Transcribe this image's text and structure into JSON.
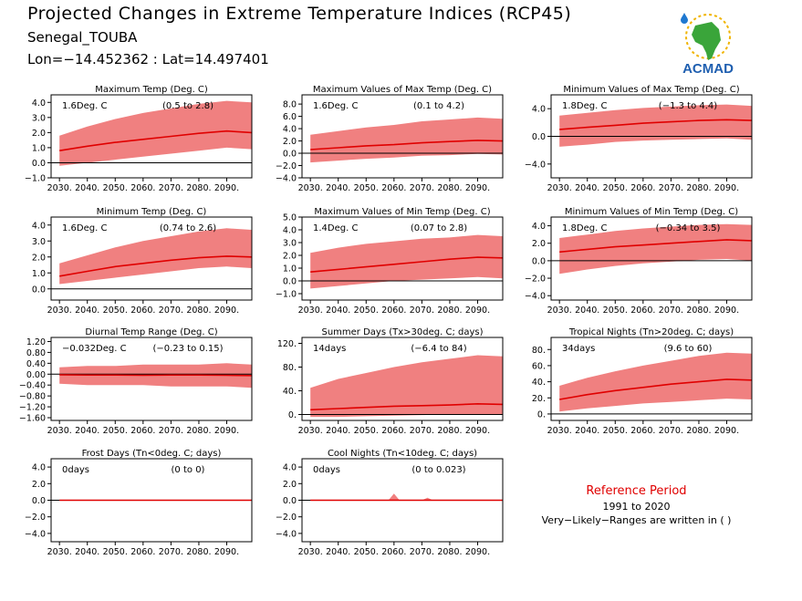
{
  "header": {
    "title": "Projected Changes in Extreme Temperature Indices (RCP45)",
    "location": "Senegal_TOUBA",
    "coords": "Lon=−14.452362 : Lat=14.497401"
  },
  "logo": {
    "text": "ACMAD",
    "icon": "africa-map-logo",
    "colors": {
      "africa": "#3aa53a",
      "sun": "#f0b400",
      "drop": "#1f78d0",
      "text": "#1f5fb0"
    }
  },
  "reference": {
    "title": "Reference Period",
    "years": "1991 to 2020",
    "note": "Very−Likely−Ranges are written in ( )"
  },
  "colors": {
    "band": "#f08080",
    "line": "#e00000",
    "zero_line": "#000000"
  },
  "chart_data": [
    {
      "type": "area",
      "title": "Maximum Temp (Deg. C)",
      "value_text": "1.6Deg. C",
      "range_text": "(0.5 to 2.8)",
      "ylim": [
        -1.0,
        4.5
      ],
      "yticks": [
        -1.0,
        0.0,
        1.0,
        2.0,
        3.0,
        4.0
      ],
      "ytick_labels": [
        "−1.0",
        "0.0",
        "1.0",
        "2.0",
        "3.0",
        "4.0"
      ],
      "xticks": [
        2030,
        2040,
        2050,
        2060,
        2070,
        2080,
        2090
      ],
      "xtick_labels": [
        "2030.",
        "2040.",
        "2050.",
        "2060.",
        "2070.",
        "2080.",
        "2090."
      ],
      "x": [
        2030,
        2040,
        2050,
        2060,
        2070,
        2080,
        2090,
        2099
      ],
      "series": [
        {
          "values": [
            0.8,
            1.1,
            1.35,
            1.55,
            1.75,
            1.95,
            2.1,
            2.0
          ]
        },
        {
          "role": "upper",
          "values": [
            1.8,
            2.4,
            2.9,
            3.3,
            3.6,
            3.9,
            4.1,
            4.0
          ]
        },
        {
          "role": "lower",
          "values": [
            -0.2,
            0.0,
            0.2,
            0.4,
            0.6,
            0.8,
            1.0,
            0.9
          ]
        }
      ]
    },
    {
      "type": "area",
      "title": "Maximum Values of Max Temp (Deg. C)",
      "value_text": "1.6Deg. C",
      "range_text": "(0.1 to 4.2)",
      "ylim": [
        -4.0,
        9.5
      ],
      "yticks": [
        -4.0,
        -2.0,
        0.0,
        2.0,
        4.0,
        6.0,
        8.0
      ],
      "ytick_labels": [
        "−4.0",
        "−2.0",
        "0.0",
        "2.0",
        "4.0",
        "6.0",
        "8.0"
      ],
      "xticks": [
        2030,
        2040,
        2050,
        2060,
        2070,
        2080,
        2090
      ],
      "xtick_labels": [
        "2030.",
        "2040.",
        "2050.",
        "2060.",
        "2070.",
        "2080.",
        "2090."
      ],
      "x": [
        2030,
        2040,
        2050,
        2060,
        2070,
        2080,
        2090,
        2099
      ],
      "series": [
        {
          "values": [
            0.6,
            0.9,
            1.2,
            1.4,
            1.7,
            1.9,
            2.1,
            2.0
          ]
        },
        {
          "role": "upper",
          "values": [
            3.0,
            3.6,
            4.2,
            4.6,
            5.2,
            5.5,
            5.8,
            5.6
          ]
        },
        {
          "role": "lower",
          "values": [
            -1.5,
            -1.2,
            -0.9,
            -0.7,
            -0.4,
            -0.3,
            -0.1,
            -0.2
          ]
        }
      ]
    },
    {
      "type": "area",
      "title": "Minimum Values of Max Temp (Deg. C)",
      "value_text": "1.8Deg. C",
      "range_text": "(−1.3 to 4.4)",
      "ylim": [
        -6.0,
        6.0
      ],
      "yticks": [
        -4.0,
        0.0,
        4.0
      ],
      "ytick_labels": [
        "−4.0",
        "0.0",
        "4.0"
      ],
      "xticks": [
        2030,
        2040,
        2050,
        2060,
        2070,
        2080,
        2090
      ],
      "xtick_labels": [
        "2030.",
        "2040.",
        "2050.",
        "2060.",
        "2070.",
        "2080.",
        "2090."
      ],
      "x": [
        2030,
        2040,
        2050,
        2060,
        2070,
        2080,
        2090,
        2099
      ],
      "series": [
        {
          "values": [
            1.0,
            1.3,
            1.6,
            1.9,
            2.1,
            2.3,
            2.4,
            2.3
          ]
        },
        {
          "role": "upper",
          "values": [
            3.0,
            3.4,
            3.8,
            4.1,
            4.3,
            4.5,
            4.6,
            4.4
          ]
        },
        {
          "role": "lower",
          "values": [
            -1.5,
            -1.2,
            -0.8,
            -0.6,
            -0.5,
            -0.4,
            -0.3,
            -0.5
          ]
        }
      ]
    },
    {
      "type": "area",
      "title": "Minimum Temp (Deg. C)",
      "value_text": "1.6Deg. C",
      "range_text": "(0.74 to 2.6)",
      "ylim": [
        -0.7,
        4.5
      ],
      "yticks": [
        0.0,
        1.0,
        2.0,
        3.0,
        4.0
      ],
      "ytick_labels": [
        "0.0",
        "1.0",
        "2.0",
        "3.0",
        "4.0"
      ],
      "xticks": [
        2030,
        2040,
        2050,
        2060,
        2070,
        2080,
        2090
      ],
      "xtick_labels": [
        "2030.",
        "2040.",
        "2050.",
        "2060.",
        "2070.",
        "2080.",
        "2090."
      ],
      "x": [
        2030,
        2040,
        2050,
        2060,
        2070,
        2080,
        2090,
        2099
      ],
      "series": [
        {
          "values": [
            0.8,
            1.1,
            1.4,
            1.6,
            1.8,
            1.95,
            2.05,
            2.0
          ]
        },
        {
          "role": "upper",
          "values": [
            1.6,
            2.1,
            2.6,
            3.0,
            3.3,
            3.6,
            3.8,
            3.7
          ]
        },
        {
          "role": "lower",
          "values": [
            0.3,
            0.5,
            0.7,
            0.9,
            1.1,
            1.3,
            1.4,
            1.3
          ]
        }
      ]
    },
    {
      "type": "area",
      "title": "Maximum Values of Min Temp (Deg. C)",
      "value_text": "1.4Deg. C",
      "range_text": "(0.07 to 2.8)",
      "ylim": [
        -1.5,
        5.0
      ],
      "yticks": [
        -1.0,
        0.0,
        1.0,
        2.0,
        3.0,
        4.0,
        5.0
      ],
      "ytick_labels": [
        "−1.0",
        "0.0",
        "1.0",
        "2.0",
        "3.0",
        "4.0",
        "5.0"
      ],
      "xticks": [
        2030,
        2040,
        2050,
        2060,
        2070,
        2080,
        2090
      ],
      "xtick_labels": [
        "2030.",
        "2040.",
        "2050.",
        "2060.",
        "2070.",
        "2080.",
        "2090."
      ],
      "x": [
        2030,
        2040,
        2050,
        2060,
        2070,
        2080,
        2090,
        2099
      ],
      "series": [
        {
          "values": [
            0.7,
            0.9,
            1.1,
            1.3,
            1.5,
            1.7,
            1.85,
            1.8
          ]
        },
        {
          "role": "upper",
          "values": [
            2.2,
            2.6,
            2.9,
            3.1,
            3.3,
            3.4,
            3.6,
            3.5
          ]
        },
        {
          "role": "lower",
          "values": [
            -0.6,
            -0.4,
            -0.2,
            0.0,
            0.1,
            0.2,
            0.3,
            0.2
          ]
        }
      ]
    },
    {
      "type": "area",
      "title": "Minimum Values of Min Temp (Deg. C)",
      "value_text": "1.8Deg. C",
      "range_text": "(−0.34 to 3.5)",
      "ylim": [
        -4.5,
        5.0
      ],
      "yticks": [
        -4.0,
        -2.0,
        0.0,
        2.0,
        4.0
      ],
      "ytick_labels": [
        "−4.0",
        "−2.0",
        "0.0",
        "2.0",
        "4.0"
      ],
      "xticks": [
        2030,
        2040,
        2050,
        2060,
        2070,
        2080,
        2090
      ],
      "xtick_labels": [
        "2030.",
        "2040.",
        "2050.",
        "2060.",
        "2070.",
        "2080.",
        "2090."
      ],
      "x": [
        2030,
        2040,
        2050,
        2060,
        2070,
        2080,
        2090,
        2099
      ],
      "series": [
        {
          "values": [
            1.0,
            1.3,
            1.6,
            1.8,
            2.0,
            2.2,
            2.4,
            2.3
          ]
        },
        {
          "role": "upper",
          "values": [
            2.6,
            3.0,
            3.4,
            3.7,
            3.9,
            4.1,
            4.2,
            4.1
          ]
        },
        {
          "role": "lower",
          "values": [
            -1.5,
            -1.0,
            -0.6,
            -0.3,
            -0.1,
            0.1,
            0.2,
            0.0
          ]
        }
      ]
    },
    {
      "type": "area",
      "title": "Diurnal Temp Range (Deg. C)",
      "value_text": "−0.032Deg. C",
      "range_text": "(−0.23 to 0.15)",
      "ylim": [
        -1.7,
        1.35
      ],
      "yticks": [
        -1.6,
        -1.2,
        -0.8,
        -0.4,
        0.0,
        0.4,
        0.8,
        1.2
      ],
      "ytick_labels": [
        "−1.60",
        "−1.20",
        "−0.80",
        "−0.40",
        "0.00",
        "0.40",
        "0.80",
        "1.20"
      ],
      "extra_ticks": [
        -1.4,
        -1.0,
        -0.6,
        -0.2,
        0.2,
        0.6,
        1.0
      ],
      "extra_tick_labels": [
        "−1.40",
        "−1.00",
        "−0.60",
        "−0.20",
        "0.20",
        "0.60",
        "1.00"
      ],
      "xticks": [
        2030,
        2040,
        2050,
        2060,
        2070,
        2080,
        2090
      ],
      "xtick_labels": [
        "2030.",
        "2040.",
        "2050.",
        "2060.",
        "2070.",
        "2080.",
        "2090."
      ],
      "x": [
        2030,
        2040,
        2050,
        2060,
        2070,
        2080,
        2090,
        2099
      ],
      "series": [
        {
          "values": [
            -0.02,
            -0.03,
            -0.03,
            -0.04,
            -0.03,
            -0.03,
            -0.04,
            -0.05
          ]
        },
        {
          "role": "upper",
          "values": [
            0.25,
            0.3,
            0.3,
            0.35,
            0.35,
            0.35,
            0.4,
            0.35
          ]
        },
        {
          "role": "lower",
          "values": [
            -0.35,
            -0.4,
            -0.4,
            -0.4,
            -0.45,
            -0.45,
            -0.45,
            -0.5
          ]
        }
      ]
    },
    {
      "type": "area",
      "title": "Summer Days (Tx>30deg. C; days)",
      "value_text": "14days",
      "range_text": "(−6.4 to 84)",
      "ylim": [
        -10,
        130
      ],
      "yticks": [
        0,
        40,
        80,
        120
      ],
      "ytick_labels": [
        "0.",
        "40.",
        "80.",
        "120."
      ],
      "xticks": [
        2030,
        2040,
        2050,
        2060,
        2070,
        2080,
        2090
      ],
      "xtick_labels": [
        "2030.",
        "2040.",
        "2050.",
        "2060.",
        "2070.",
        "2080.",
        "2090."
      ],
      "x": [
        2030,
        2040,
        2050,
        2060,
        2070,
        2080,
        2090,
        2099
      ],
      "series": [
        {
          "values": [
            8,
            10,
            12,
            14,
            15,
            16,
            18,
            17
          ]
        },
        {
          "role": "upper",
          "values": [
            45,
            60,
            70,
            80,
            88,
            94,
            100,
            98
          ]
        },
        {
          "role": "lower",
          "values": [
            -4,
            -4,
            -3,
            -2,
            -1,
            0,
            0,
            0
          ]
        }
      ]
    },
    {
      "type": "area",
      "title": "Tropical Nights (Tn>20deg. C; days)",
      "value_text": "34days",
      "range_text": "(9.6 to 60)",
      "ylim": [
        -8,
        95
      ],
      "yticks": [
        0,
        20,
        40,
        60,
        80
      ],
      "ytick_labels": [
        "0.",
        "20.",
        "40.",
        "60.",
        "80."
      ],
      "xticks": [
        2030,
        2040,
        2050,
        2060,
        2070,
        2080,
        2090
      ],
      "xtick_labels": [
        "2030.",
        "2040.",
        "2050.",
        "2060.",
        "2070.",
        "2080.",
        "2090."
      ],
      "x": [
        2030,
        2040,
        2050,
        2060,
        2070,
        2080,
        2090,
        2099
      ],
      "series": [
        {
          "values": [
            18,
            24,
            29,
            33,
            37,
            40,
            43,
            42
          ]
        },
        {
          "role": "upper",
          "values": [
            35,
            45,
            53,
            60,
            66,
            72,
            76,
            75
          ]
        },
        {
          "role": "lower",
          "values": [
            3,
            7,
            10,
            13,
            15,
            17,
            19,
            18
          ]
        }
      ]
    },
    {
      "type": "area",
      "title": "Frost Days (Tn<0deg. C; days)",
      "value_text": "0days",
      "range_text": "(0 to 0)",
      "ylim": [
        -5,
        5
      ],
      "yticks": [
        -4.0,
        -2.0,
        0.0,
        2.0,
        4.0
      ],
      "ytick_labels": [
        "−4.0",
        "−2.0",
        "0.0",
        "2.0",
        "4.0"
      ],
      "xticks": [
        2030,
        2040,
        2050,
        2060,
        2070,
        2080,
        2090
      ],
      "xtick_labels": [
        "2030.",
        "2040.",
        "2050.",
        "2060.",
        "2070.",
        "2080.",
        "2090."
      ],
      "x": [
        2030,
        2099
      ],
      "series": [
        {
          "values": [
            0,
            0
          ]
        },
        {
          "role": "upper",
          "values": [
            0,
            0
          ]
        },
        {
          "role": "lower",
          "values": [
            0,
            0
          ]
        }
      ]
    },
    {
      "type": "area",
      "title": "Cool Nights (Tn<10deg. C; days)",
      "value_text": "0days",
      "range_text": "(0 to 0.023)",
      "ylim": [
        -5,
        5
      ],
      "yticks": [
        -4.0,
        -2.0,
        0.0,
        2.0,
        4.0
      ],
      "ytick_labels": [
        "−4.0",
        "−2.0",
        "0.0",
        "2.0",
        "4.0"
      ],
      "xticks": [
        2030,
        2040,
        2050,
        2060,
        2070,
        2080,
        2090
      ],
      "xtick_labels": [
        "2030.",
        "2040.",
        "2050.",
        "2060.",
        "2070.",
        "2080.",
        "2090."
      ],
      "x": [
        2030,
        2058,
        2060,
        2062,
        2070,
        2072,
        2074,
        2099
      ],
      "series": [
        {
          "values": [
            0,
            0,
            0,
            0,
            0,
            0,
            0,
            0
          ]
        },
        {
          "role": "upper",
          "values": [
            0,
            0,
            0.8,
            0,
            0,
            0.3,
            0,
            0
          ]
        },
        {
          "role": "lower",
          "values": [
            0,
            0,
            0,
            0,
            0,
            0,
            0,
            0
          ]
        }
      ]
    }
  ]
}
